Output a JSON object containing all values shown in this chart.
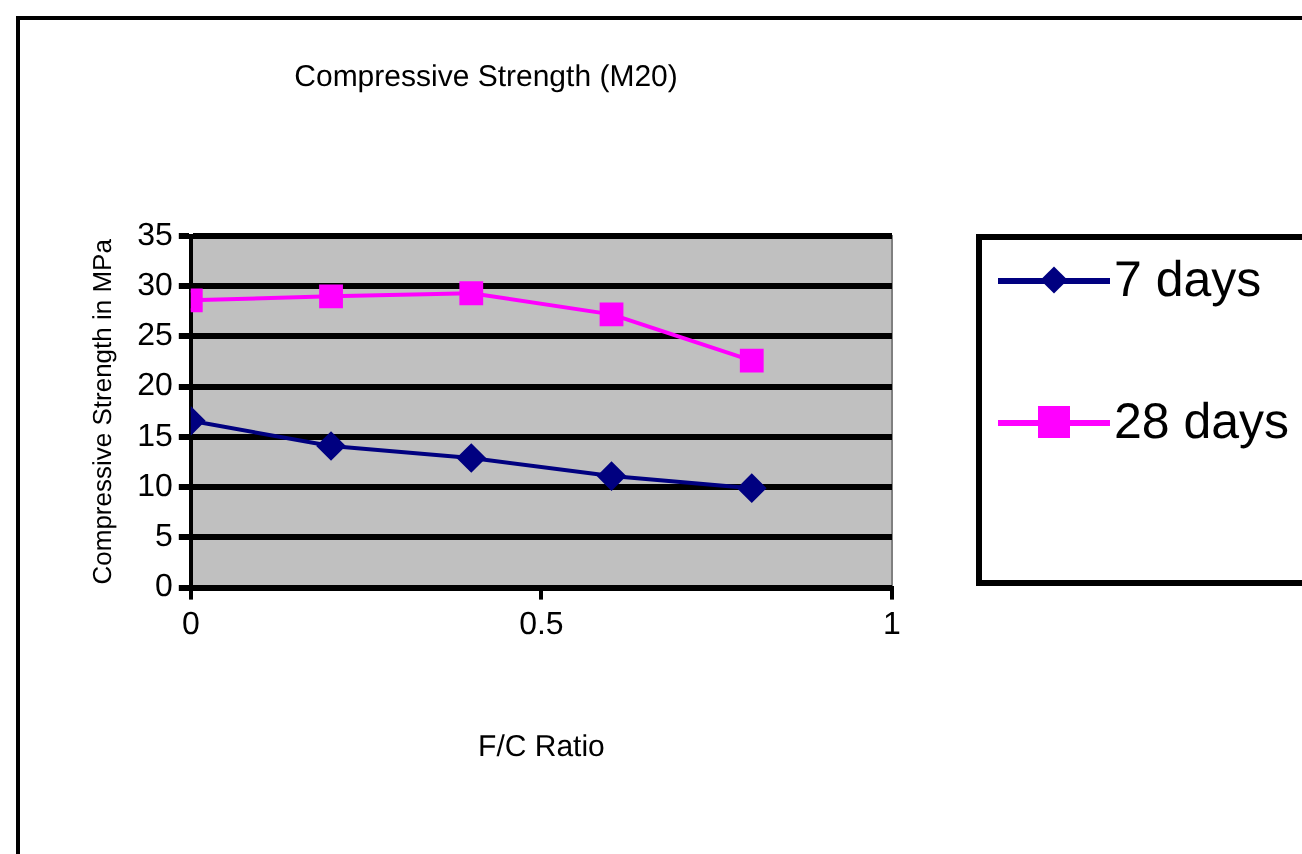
{
  "chart_data": {
    "type": "line",
    "title": "Compressive Strength (M20)",
    "xlabel": "F/C Ratio",
    "ylabel": "Compressive Strength in MPa",
    "x": [
      0,
      0.2,
      0.4,
      0.6,
      0.8
    ],
    "series": [
      {
        "name": "7 days",
        "color": "#000080",
        "marker": "diamond",
        "values": [
          16.6,
          14.1,
          12.9,
          11.1,
          9.9
        ]
      },
      {
        "name": "28 days",
        "color": "#ff00ff",
        "marker": "square",
        "values": [
          28.6,
          29.0,
          29.3,
          27.2,
          22.6
        ]
      }
    ],
    "xlim": [
      0,
      1
    ],
    "xticks": [
      0,
      0.5,
      1
    ],
    "ylim": [
      0,
      35
    ],
    "yticks": [
      0,
      5,
      10,
      15,
      20,
      25,
      30,
      35
    ],
    "grid": "y",
    "legend": "right"
  }
}
